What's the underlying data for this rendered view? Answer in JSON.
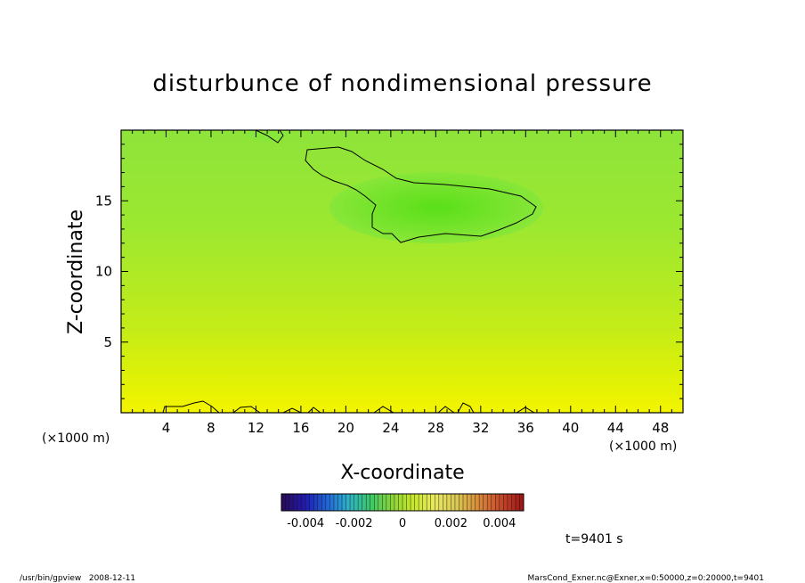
{
  "chart_data": {
    "type": "heatmap",
    "title": "disturbunce of nondimensional pressure",
    "xlabel": "X-coordinate",
    "ylabel": "Z-coordinate",
    "x_unit_left": "(×1000 m)",
    "x_unit_right": "(×1000 m)",
    "xlim": [
      0,
      50
    ],
    "ylim": [
      0,
      20
    ],
    "xticks": [
      4,
      8,
      12,
      16,
      20,
      24,
      28,
      32,
      36,
      40,
      44,
      48
    ],
    "yticks": [
      5,
      10,
      15
    ],
    "colorbar": {
      "range": [
        -0.005,
        0.005
      ],
      "labels": [
        "-0.004",
        "-0.002",
        "0",
        "0.002",
        "0.004"
      ],
      "label_values": [
        -0.004,
        -0.002,
        0,
        0.002,
        0.004
      ],
      "colors": [
        "#2a0b5c",
        "#1f1ab0",
        "#1f64d8",
        "#2eb0c8",
        "#3ac86a",
        "#8ad43a",
        "#c8e82a",
        "#e8e860",
        "#d8c850",
        "#d88a3a",
        "#c84a2a",
        "#a01818"
      ]
    },
    "field_colors": {
      "low_region": "#5ee41a",
      "background": "#9de830",
      "surface": "#f2f200"
    },
    "contour_value": -0.001,
    "time_label": "t=9401 s"
  },
  "footer": {
    "left": "/usr/bin/gpview   2008-12-11",
    "right": "MarsCond_Exner.nc@Exner,x=0:50000,z=0:20000,t=9401"
  }
}
